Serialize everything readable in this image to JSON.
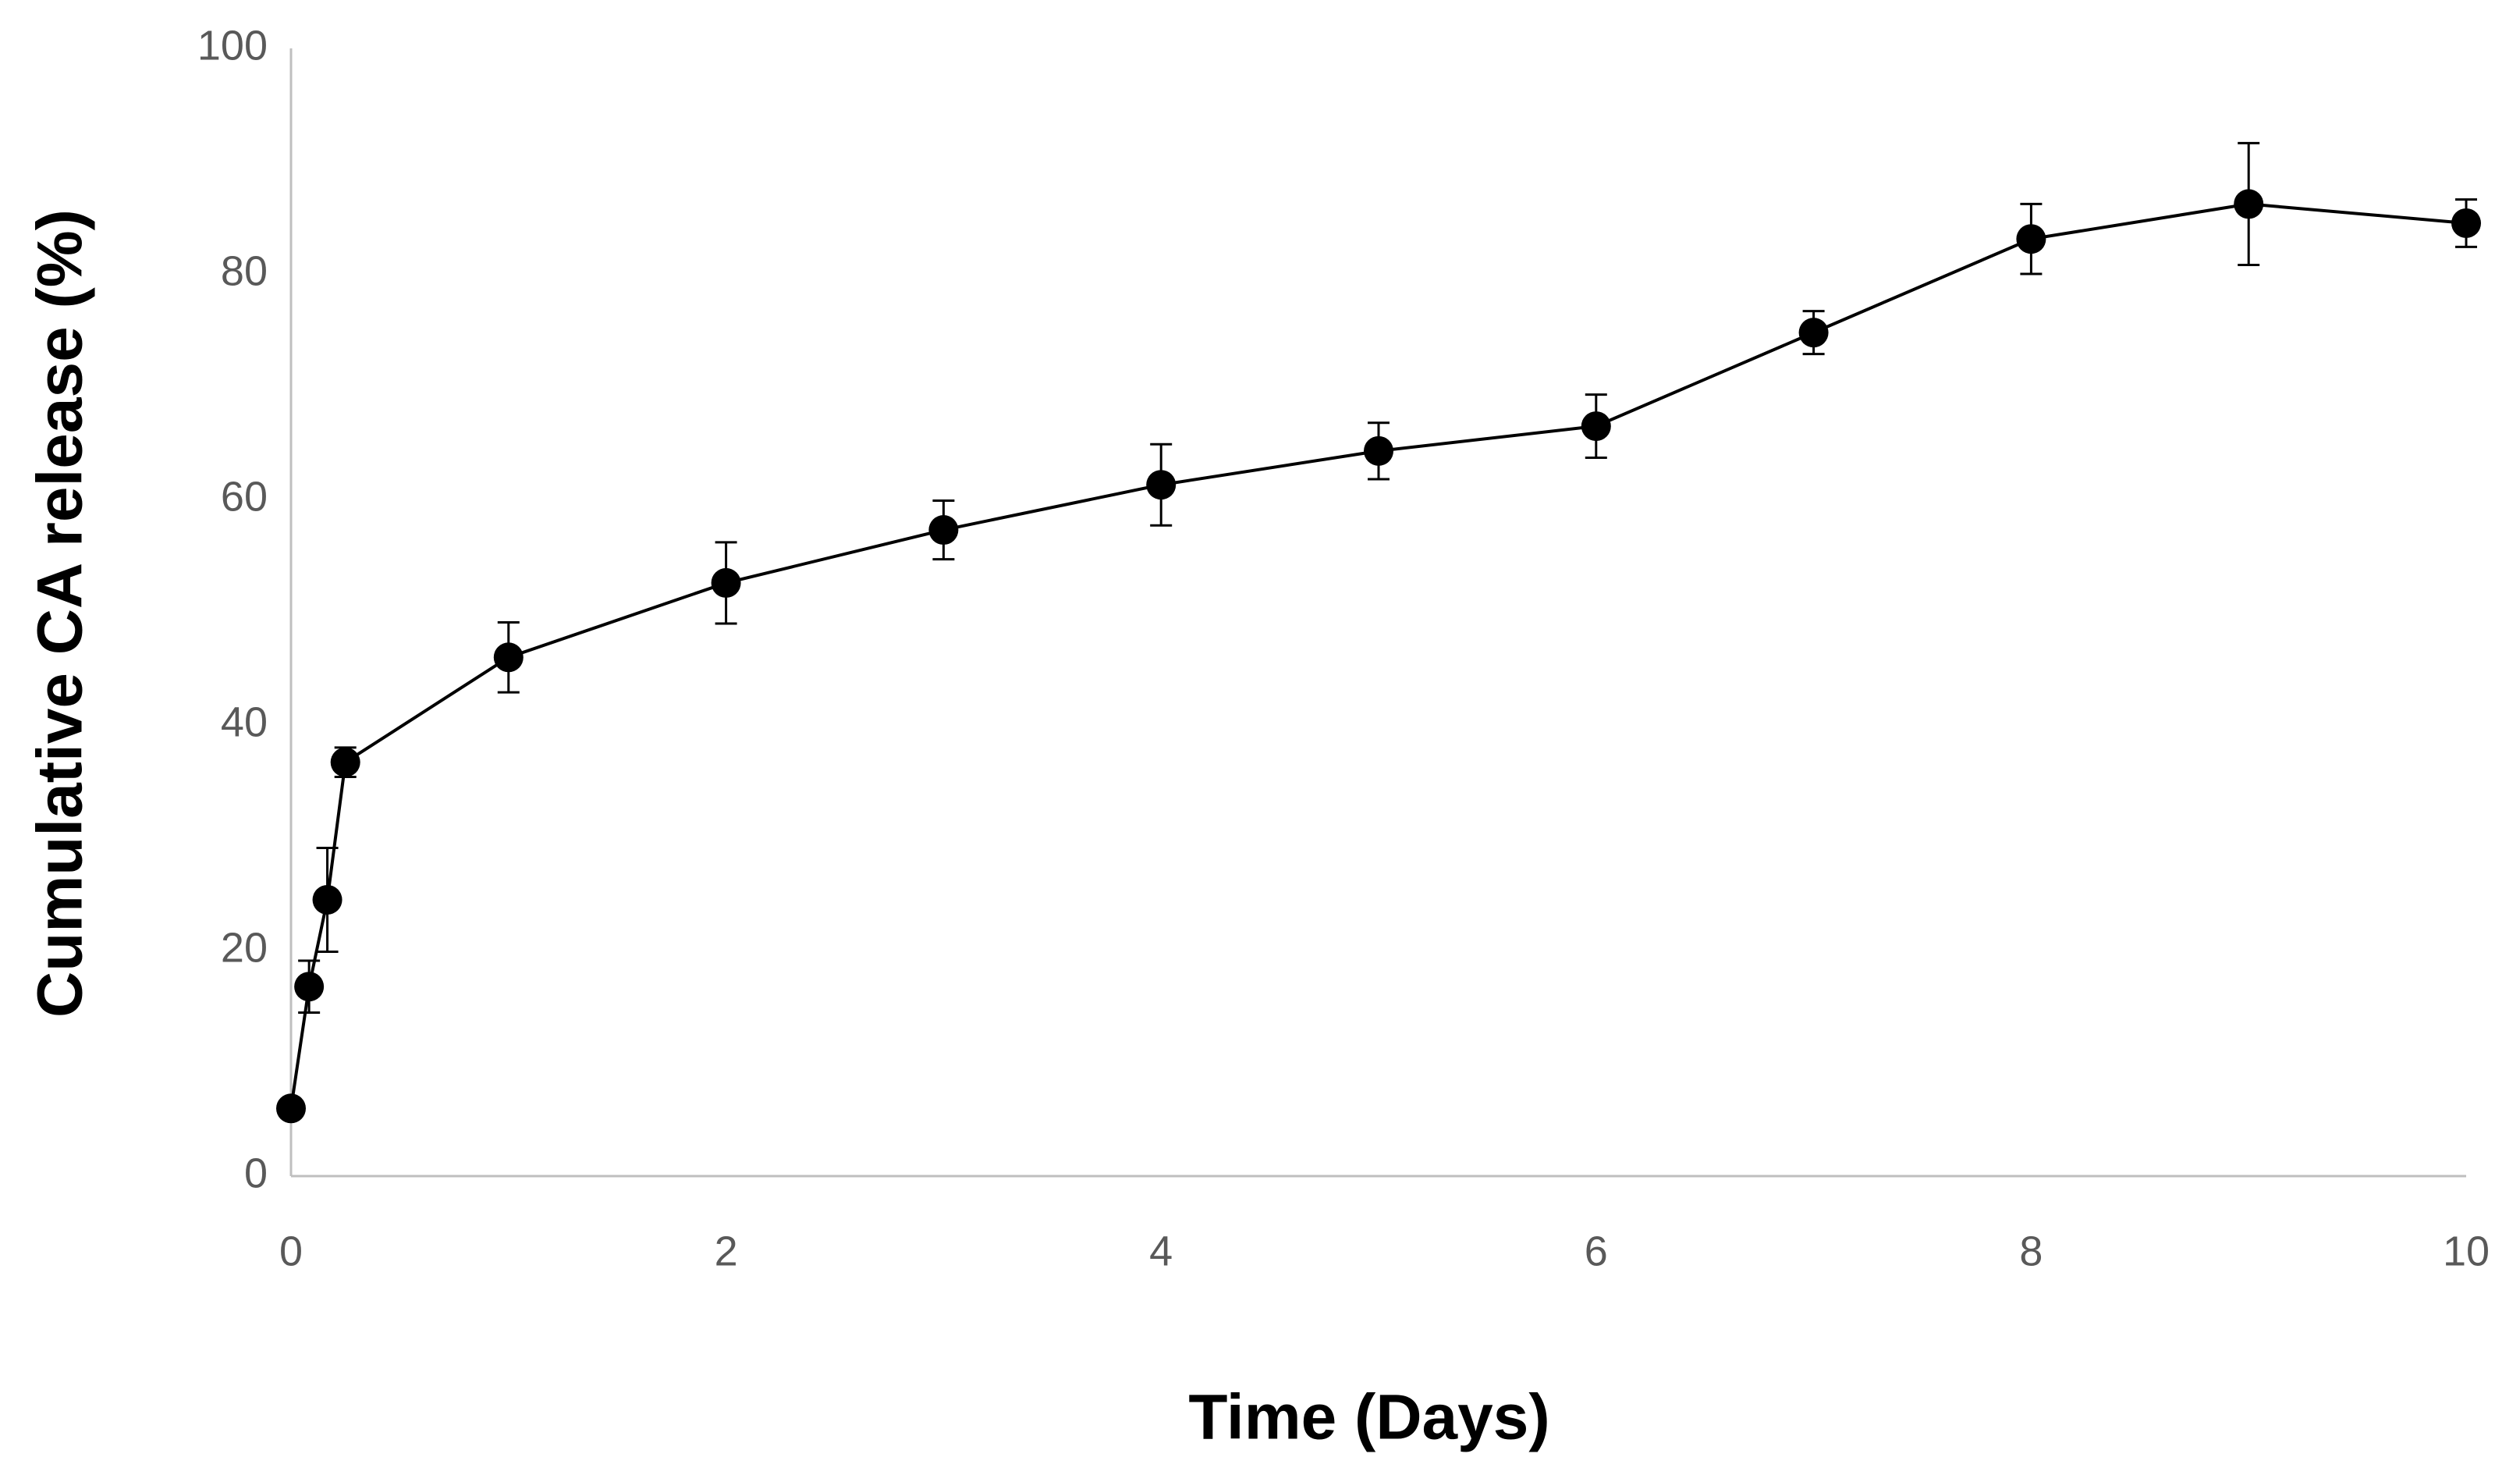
{
  "chart_data": {
    "type": "line",
    "x_label": "Time (Days)",
    "y_label": "Cumulative CA release (%)",
    "x": [
      0,
      0.083,
      0.167,
      0.25,
      1,
      2,
      3,
      4,
      5,
      6,
      7,
      8,
      9,
      10
    ],
    "series": [
      {
        "color": "#000000",
        "values": [
          6.0,
          16.8,
          24.5,
          36.7,
          46.0,
          52.6,
          57.3,
          61.3,
          64.3,
          66.5,
          74.8,
          83.1,
          86.2,
          84.5
        ],
        "errors": [
          0.5,
          2.3,
          4.6,
          1.3,
          3.1,
          3.6,
          2.6,
          3.6,
          2.5,
          2.8,
          1.9,
          3.1,
          5.4,
          2.1
        ]
      }
    ],
    "xlim": [
      0,
      10
    ],
    "xticks": [
      0,
      2,
      4,
      6,
      8,
      10
    ],
    "ylim": [
      0,
      100
    ],
    "yticks": [
      0,
      20,
      40,
      60,
      80,
      100
    ],
    "grid": false
  }
}
